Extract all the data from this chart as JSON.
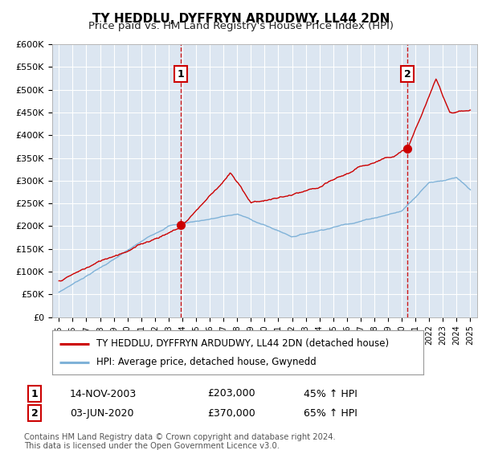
{
  "title": "TY HEDDLU, DYFFRYN ARDUDWY, LL44 2DN",
  "subtitle": "Price paid vs. HM Land Registry's House Price Index (HPI)",
  "ylim": [
    0,
    600000
  ],
  "yticks": [
    0,
    50000,
    100000,
    150000,
    200000,
    250000,
    300000,
    350000,
    400000,
    450000,
    500000,
    550000,
    600000
  ],
  "ytick_labels": [
    "£0",
    "£50K",
    "£100K",
    "£150K",
    "£200K",
    "£250K",
    "£300K",
    "£350K",
    "£400K",
    "£450K",
    "£500K",
    "£550K",
    "£600K"
  ],
  "xlim": [
    1994.5,
    2025.5
  ],
  "background_color": "#dce6f1",
  "grid_color": "#ffffff",
  "sale1_x": 2003.87,
  "sale1_y": 203000,
  "sale2_x": 2020.42,
  "sale2_y": 370000,
  "sale1_date": "14-NOV-2003",
  "sale1_price": "£203,000",
  "sale1_hpi": "45% ↑ HPI",
  "sale2_date": "03-JUN-2020",
  "sale2_price": "£370,000",
  "sale2_hpi": "65% ↑ HPI",
  "line1_color": "#cc0000",
  "line2_color": "#7fb2d8",
  "vline_color": "#cc0000",
  "legend1_label": "TY HEDDLU, DYFFRYN ARDUDWY, LL44 2DN (detached house)",
  "legend2_label": "HPI: Average price, detached house, Gwynedd",
  "footnote": "Contains HM Land Registry data © Crown copyright and database right 2024.\nThis data is licensed under the Open Government Licence v3.0.",
  "title_fontsize": 11,
  "subtitle_fontsize": 9.5
}
